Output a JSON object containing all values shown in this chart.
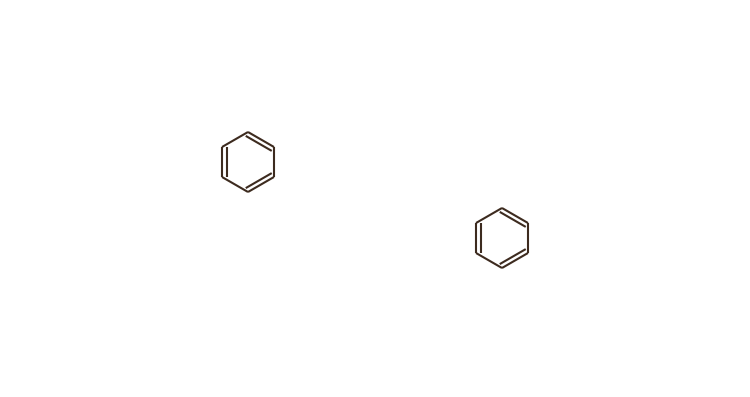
{
  "bg_color": "#ffffff",
  "line_color": "#3d2b1f",
  "line_width": 1.4,
  "figsize": [
    7.5,
    3.97
  ],
  "dpi": 100
}
